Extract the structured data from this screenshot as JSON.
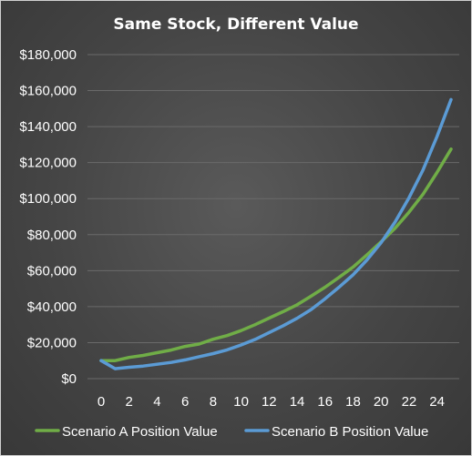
{
  "chart_data": {
    "type": "line",
    "title": "Same Stock, Different Value",
    "xlabel": "",
    "ylabel": "",
    "xlim": [
      0,
      25
    ],
    "ylim": [
      0,
      180000
    ],
    "grid": true,
    "legend_position": "bottom",
    "x_ticks": [
      "0",
      "2",
      "4",
      "6",
      "8",
      "10",
      "12",
      "14",
      "16",
      "18",
      "20",
      "22",
      "24"
    ],
    "y_ticks": [
      "$0",
      "$20,000",
      "$40,000",
      "$60,000",
      "$80,000",
      "$100,000",
      "$120,000",
      "$140,000",
      "$160,000",
      "$180,000"
    ],
    "x": [
      0,
      1,
      2,
      3,
      4,
      5,
      6,
      7,
      8,
      9,
      10,
      11,
      12,
      13,
      14,
      15,
      16,
      17,
      18,
      19,
      20,
      21,
      22,
      23,
      24,
      25
    ],
    "series": [
      {
        "name": "Scenario A Position Value",
        "color": "#70ad47",
        "values": [
          10000,
          10000,
          11800,
          12900,
          14400,
          15900,
          17900,
          19200,
          21900,
          23900,
          26700,
          30000,
          33600,
          37200,
          41000,
          45800,
          50800,
          56300,
          62000,
          68800,
          76000,
          83600,
          92500,
          102500,
          114500,
          127500
        ]
      },
      {
        "name": "Scenario B Position Value",
        "color": "#5b9bd5",
        "values": [
          10000,
          5500,
          6300,
          7000,
          8000,
          9000,
          10400,
          12200,
          13900,
          16000,
          18700,
          21800,
          25600,
          29400,
          33500,
          38400,
          44400,
          50800,
          57700,
          66000,
          75500,
          87000,
          100500,
          116000,
          134500,
          155000
        ]
      }
    ]
  }
}
